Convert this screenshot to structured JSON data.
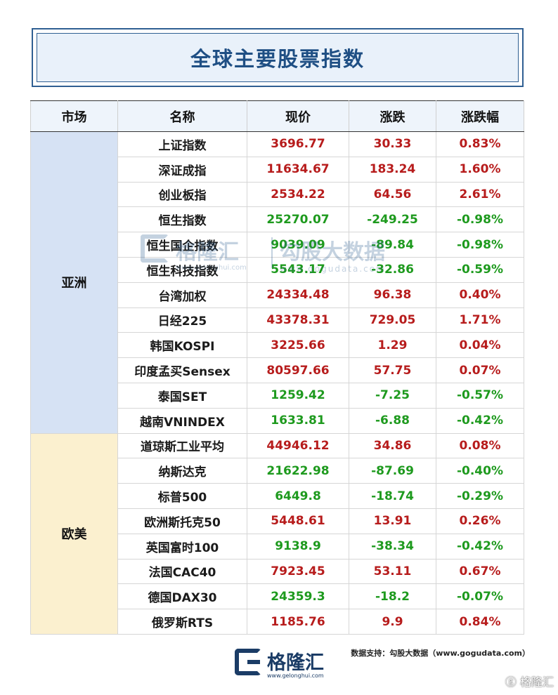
{
  "title": "全球主要股票指数",
  "table": {
    "headers": [
      "市场",
      "名称",
      "现价",
      "涨跌",
      "涨跌幅"
    ],
    "regions": [
      {
        "name": "亚洲",
        "rows": [
          {
            "name": "上证指数",
            "price": "3696.77",
            "change": "30.33",
            "pct": "0.83%",
            "dir": "up"
          },
          {
            "name": "深证成指",
            "price": "11634.67",
            "change": "183.24",
            "pct": "1.60%",
            "dir": "up"
          },
          {
            "name": "创业板指",
            "price": "2534.22",
            "change": "64.56",
            "pct": "2.61%",
            "dir": "up"
          },
          {
            "name": "恒生指数",
            "price": "25270.07",
            "change": "-249.25",
            "pct": "-0.98%",
            "dir": "down"
          },
          {
            "name": "恒生国企指数",
            "price": "9039.09",
            "change": "-89.84",
            "pct": "-0.98%",
            "dir": "down"
          },
          {
            "name": "恒生科技指数",
            "price": "5543.17",
            "change": "-32.86",
            "pct": "-0.59%",
            "dir": "down"
          },
          {
            "name": "台湾加权",
            "price": "24334.48",
            "change": "96.38",
            "pct": "0.40%",
            "dir": "up"
          },
          {
            "name": "日经225",
            "price": "43378.31",
            "change": "729.05",
            "pct": "1.71%",
            "dir": "up"
          },
          {
            "name": "韩国KOSPI",
            "price": "3225.66",
            "change": "1.29",
            "pct": "0.04%",
            "dir": "up"
          },
          {
            "name": "印度孟买Sensex",
            "price": "80597.66",
            "change": "57.75",
            "pct": "0.07%",
            "dir": "up"
          },
          {
            "name": "泰国SET",
            "price": "1259.42",
            "change": "-7.25",
            "pct": "-0.57%",
            "dir": "down"
          },
          {
            "name": "越南VNINDEX",
            "price": "1633.81",
            "change": "-6.88",
            "pct": "-0.42%",
            "dir": "down"
          }
        ]
      },
      {
        "name": "欧美",
        "rows": [
          {
            "name": "道琼斯工业平均",
            "price": "44946.12",
            "change": "34.86",
            "pct": "0.08%",
            "dir": "up"
          },
          {
            "name": "纳斯达克",
            "price": "21622.98",
            "change": "-87.69",
            "pct": "-0.40%",
            "dir": "down"
          },
          {
            "name": "标普500",
            "price": "6449.8",
            "change": "-18.74",
            "pct": "-0.29%",
            "dir": "down"
          },
          {
            "name": "欧洲斯托克50",
            "price": "5448.61",
            "change": "13.91",
            "pct": "0.26%",
            "dir": "up"
          },
          {
            "name": "英国富时100",
            "price": "9138.9",
            "change": "-38.34",
            "pct": "-0.42%",
            "dir": "down"
          },
          {
            "name": "法国CAC40",
            "price": "7923.45",
            "change": "53.11",
            "pct": "0.67%",
            "dir": "up"
          },
          {
            "name": "德国DAX30",
            "price": "24359.3",
            "change": "-18.2",
            "pct": "-0.07%",
            "dir": "down"
          },
          {
            "name": "俄罗斯RTS",
            "price": "1185.76",
            "change": "9.9",
            "pct": "0.84%",
            "dir": "up"
          }
        ]
      }
    ]
  },
  "watermark": {
    "brand": "格隆汇",
    "brand_url": "www.gelonghui.com",
    "data_brand": "勾股大数据",
    "data_url": "www.gogudata.com"
  },
  "source_note": "数据支持：勾股大数据（www.gogudata.com）",
  "logo": {
    "name": "格隆汇",
    "url": "www.gelonghui.com"
  },
  "corner_mark": "ⓖ 格隆汇",
  "colors": {
    "up": "#b71c1c",
    "down": "#1e9a1e",
    "title": "#1f4f84",
    "asia_bg": "#d6e2f4",
    "europe_bg": "#fbf0cf"
  }
}
